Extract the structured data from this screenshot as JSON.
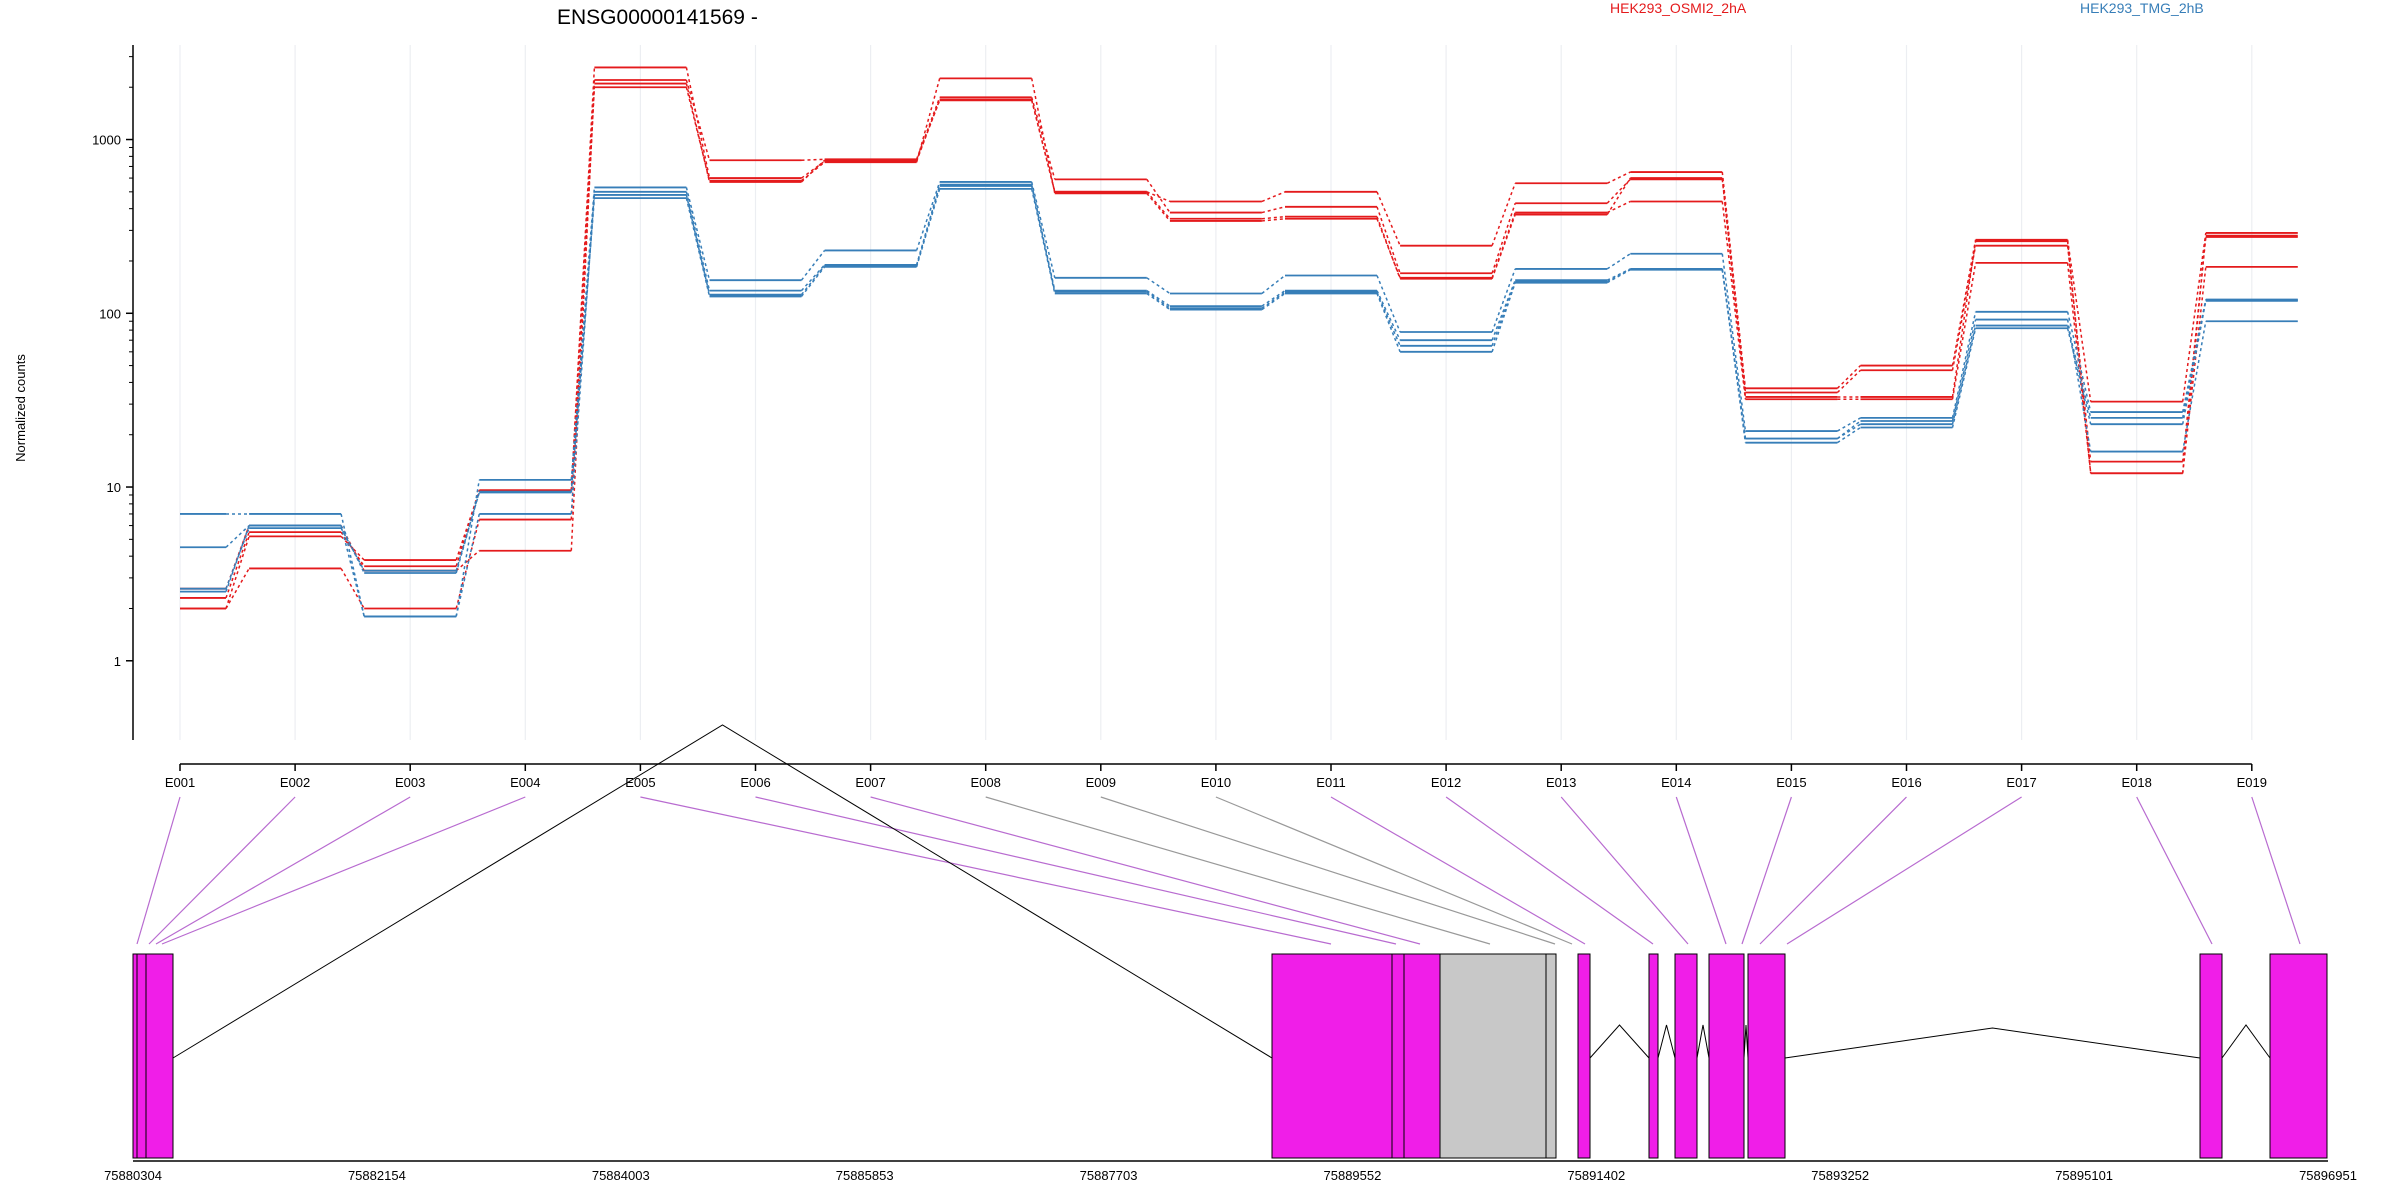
{
  "chart_data": {
    "type": "line",
    "title": "ENSG00000141569 -",
    "ylabel": "Normalized counts",
    "yscale": "log",
    "ylim": [
      0.35,
      3500
    ],
    "yticks": [
      1,
      10,
      100,
      1000
    ],
    "grid": "vertical",
    "legend_position": "top-right",
    "exons": [
      "E001",
      "E002",
      "E003",
      "E004",
      "E005",
      "E006",
      "E007",
      "E008",
      "E009",
      "E010",
      "E011",
      "E012",
      "E013",
      "E014",
      "E015",
      "E016",
      "E017",
      "E018",
      "E019"
    ],
    "series": [
      {
        "name": "HEK293_OSMI2_2hA",
        "group": "OSMI2",
        "color": "#e41a1c",
        "values": [
          2.0,
          5.2,
          3.8,
          9.5,
          2600,
          600,
          750,
          1700,
          500,
          440,
          500,
          245,
          560,
          650,
          37,
          50,
          265,
          31,
          290
        ]
      },
      {
        "name": "",
        "group": "OSMI2",
        "color": "#e41a1c",
        "values": [
          2.3,
          5.5,
          3.5,
          9.6,
          2200,
          760,
          770,
          1750,
          590,
          380,
          410,
          170,
          430,
          590,
          35,
          47,
          245,
          14,
          275
        ]
      },
      {
        "name": "",
        "group": "OSMI2",
        "color": "#e41a1c",
        "values": [
          2.0,
          3.4,
          2.0,
          6.5,
          2000,
          580,
          740,
          2250,
          490,
          340,
          350,
          160,
          380,
          440,
          32,
          32,
          195,
          12,
          185
        ]
      },
      {
        "name": "",
        "group": "OSMI2",
        "color": "#e41a1c",
        "values": [
          2.6,
          6.0,
          3.3,
          4.3,
          2100,
          570,
          760,
          1680,
          500,
          350,
          360,
          158,
          370,
          600,
          33,
          33,
          260,
          12,
          280
        ]
      },
      {
        "name": "HEK293_TMG_2hB",
        "group": "TMG",
        "color": "#377eb8",
        "values": [
          7.0,
          7.0,
          1.8,
          11.0,
          530,
          155,
          230,
          570,
          160,
          130,
          165,
          78,
          180,
          220,
          21,
          25,
          102,
          27,
          120
        ]
      },
      {
        "name": "",
        "group": "TMG",
        "color": "#377eb8",
        "values": [
          4.5,
          6.0,
          1.8,
          7.0,
          500,
          135,
          190,
          550,
          135,
          110,
          135,
          70,
          155,
          180,
          19,
          24,
          92,
          16,
          90
        ]
      },
      {
        "name": "",
        "group": "TMG",
        "color": "#377eb8",
        "values": [
          2.6,
          5.8,
          3.3,
          9.3,
          460,
          125,
          185,
          520,
          130,
          105,
          130,
          60,
          150,
          178,
          18,
          22,
          82,
          23,
          118
        ]
      },
      {
        "name": "",
        "group": "TMG",
        "color": "#377eb8",
        "values": [
          2.5,
          6.0,
          3.2,
          9.4,
          480,
          128,
          188,
          540,
          133,
          107,
          132,
          65,
          152,
          179,
          19,
          23,
          85,
          25,
          119
        ]
      }
    ],
    "genomic_ticks": [
      "75880304",
      "75882154",
      "75884003",
      "75885853",
      "75887703",
      "75889552",
      "75891402",
      "75893252",
      "75895101",
      "75896951"
    ],
    "genomic_range": [
      75880304,
      75896951
    ],
    "exon_color": "#f01ee8",
    "other_exon_color": "#c8c8c8"
  }
}
